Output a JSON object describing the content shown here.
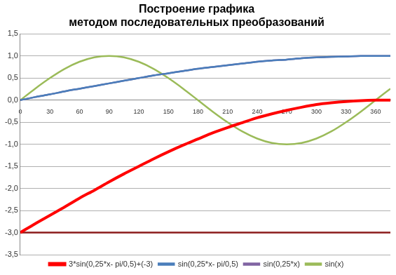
{
  "chart_data": {
    "type": "line",
    "title": "Построение графика\nметодом последовательных преобразований",
    "x": [
      0,
      15,
      30,
      45,
      60,
      75,
      90,
      105,
      120,
      135,
      150,
      165,
      180,
      195,
      210,
      225,
      240,
      255,
      270,
      285,
      300,
      315,
      330,
      345,
      360,
      375
    ],
    "xlim": [
      0,
      375
    ],
    "xticks": [
      0,
      30,
      60,
      90,
      120,
      150,
      180,
      210,
      240,
      270,
      300,
      330,
      360
    ],
    "ylim": [
      -3.5,
      1.5
    ],
    "yticks": [
      {
        "value": -3.5,
        "label": "-3,5"
      },
      {
        "value": -3,
        "label": "-3,0"
      },
      {
        "value": -2.5,
        "label": "-2,5"
      },
      {
        "value": -2,
        "label": "-2,0"
      },
      {
        "value": -1.5,
        "label": "-1,5"
      },
      {
        "value": -1,
        "label": "-1,0"
      },
      {
        "value": -0.5,
        "label": "-0,5"
      },
      {
        "value": 0,
        "label": "0,0"
      },
      {
        "value": 0.5,
        "label": "0,5"
      },
      {
        "value": 1,
        "label": "1,0"
      },
      {
        "value": 1.5,
        "label": "1,5"
      }
    ],
    "grid": true,
    "legend": "bottom",
    "series": [
      {
        "name": "sin(x)",
        "color": "#9bbb59",
        "values": [
          0,
          0.26,
          0.5,
          0.71,
          0.87,
          0.97,
          1,
          0.97,
          0.87,
          0.71,
          0.5,
          0.26,
          0,
          -0.26,
          -0.5,
          -0.71,
          -0.87,
          -0.97,
          -1,
          -0.97,
          -0.87,
          -0.71,
          -0.5,
          -0.26,
          0,
          0.26
        ]
      },
      {
        "name": "sin(0,25*x)",
        "color": "#8064a2",
        "values": [
          0,
          0.07,
          0.13,
          0.2,
          0.26,
          0.32,
          0.38,
          0.44,
          0.5,
          0.56,
          0.61,
          0.66,
          0.71,
          0.75,
          0.79,
          0.83,
          0.87,
          0.9,
          0.92,
          0.95,
          0.97,
          0.98,
          0.99,
          1,
          1,
          1
        ]
      },
      {
        "name": "sin(0,25*x- pi/0,5)",
        "color": "#4a7ebb",
        "values": [
          0,
          0.07,
          0.13,
          0.2,
          0.26,
          0.32,
          0.38,
          0.44,
          0.5,
          0.56,
          0.61,
          0.66,
          0.71,
          0.75,
          0.79,
          0.83,
          0.87,
          0.9,
          0.92,
          0.95,
          0.97,
          0.98,
          0.99,
          1,
          1,
          1
        ]
      },
      {
        "name": "3*sin(0,25*x- pi/0,5)+(-3)",
        "color": "#ff0000",
        "values": [
          -3,
          -2.8,
          -2.61,
          -2.42,
          -2.22,
          -2.04,
          -1.85,
          -1.67,
          -1.5,
          -1.33,
          -1.17,
          -1.02,
          -0.88,
          -0.74,
          -0.62,
          -0.51,
          -0.4,
          -0.31,
          -0.23,
          -0.16,
          -0.1,
          -0.06,
          -0.03,
          -0.01,
          0,
          0
        ]
      },
      {
        "color": "#8b1a1a",
        "values": [
          -3,
          -3,
          -3,
          -3,
          -3,
          -3,
          -3,
          -3,
          -3,
          -3,
          -3,
          -3,
          -3,
          -3,
          -3,
          -3,
          -3,
          -3,
          -3,
          -3,
          -3,
          -3,
          -3,
          -3,
          -3,
          -3
        ]
      }
    ]
  }
}
